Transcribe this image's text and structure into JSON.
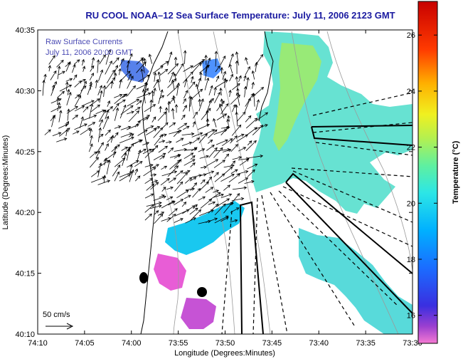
{
  "chart_data": {
    "type": "heatmap",
    "title": "RU COOL  NOAA–12  Sea Surface Temperature:  July 11, 2006 2123 GMT",
    "xlabel": "Longitude (Degrees:Minutes)",
    "ylabel": "Latitude (Degrees:Minutes)",
    "x_tick_labels": [
      "74:10",
      "74:05",
      "74:00",
      "73:55",
      "73:50",
      "73:45",
      "73:40",
      "73:35",
      "73:30"
    ],
    "y_tick_labels": [
      "40:35",
      "40:30",
      "40:25",
      "40:20",
      "40:15",
      "40:10"
    ],
    "xlim_deg": [
      -74.1667,
      -73.5
    ],
    "ylim_deg": [
      40.1667,
      40.5833
    ],
    "colorbar": {
      "label": "Temperature (°C)",
      "range": [
        15,
        27.2
      ],
      "ticks": [
        "16",
        "18",
        "20",
        "22",
        "24",
        "26"
      ],
      "tick_values": [
        16,
        18,
        20,
        22,
        24,
        26
      ]
    },
    "overlay_legend": {
      "line1": "Raw Surface Currents",
      "line2": "July 11, 2006 20:00 GMT"
    },
    "scale_arrow_label": "50 cm/s",
    "grid": false
  }
}
